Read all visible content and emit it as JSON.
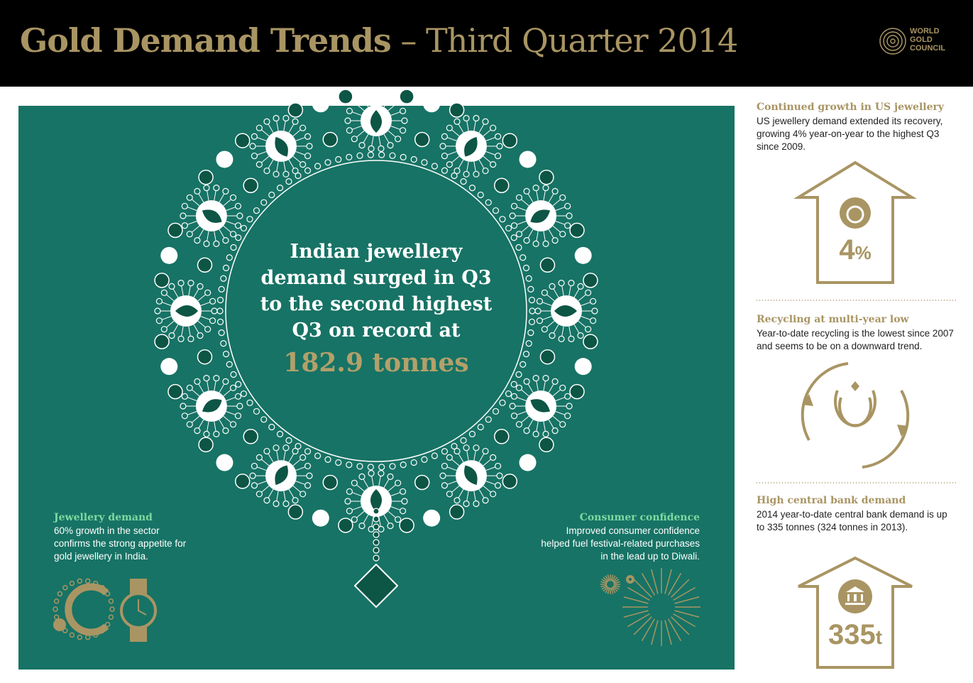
{
  "header": {
    "title_main": "Gold Demand Trends",
    "title_sub": "– Third Quarter 2014",
    "logo": [
      "WORLD",
      "GOLD",
      "COUNCIL"
    ]
  },
  "main": {
    "headline": "Indian jewellery demand surged in Q3 to the second highest Q3 on record at",
    "highlight": "182.9 tonnes",
    "jewellery": {
      "title": "Jewellery demand",
      "body": "60% growth in the sector confirms the strong appetite for gold jewellery in India."
    },
    "consumer": {
      "title": "Consumer confidence",
      "body": "Improved consumer confidence helped fuel festival-related purchases in the lead up to Diwali."
    }
  },
  "sidebar": [
    {
      "title": "Continued growth in US jewellery",
      "body": "US jewellery demand extended its recovery, growing 4% year-on-year to the highest Q3 since 2009.",
      "figure_value": "4",
      "figure_unit": "%"
    },
    {
      "title": "Recycling at multi-year low",
      "body": "Year-to-date recycling is the lowest since 2007 and seems to be on a downward trend."
    },
    {
      "title": "High central bank demand",
      "body": "2014 year-to-date central bank demand is up to 335 tonnes (324 tonnes in 2013).",
      "figure_value": "335",
      "figure_unit": "t"
    }
  ]
}
